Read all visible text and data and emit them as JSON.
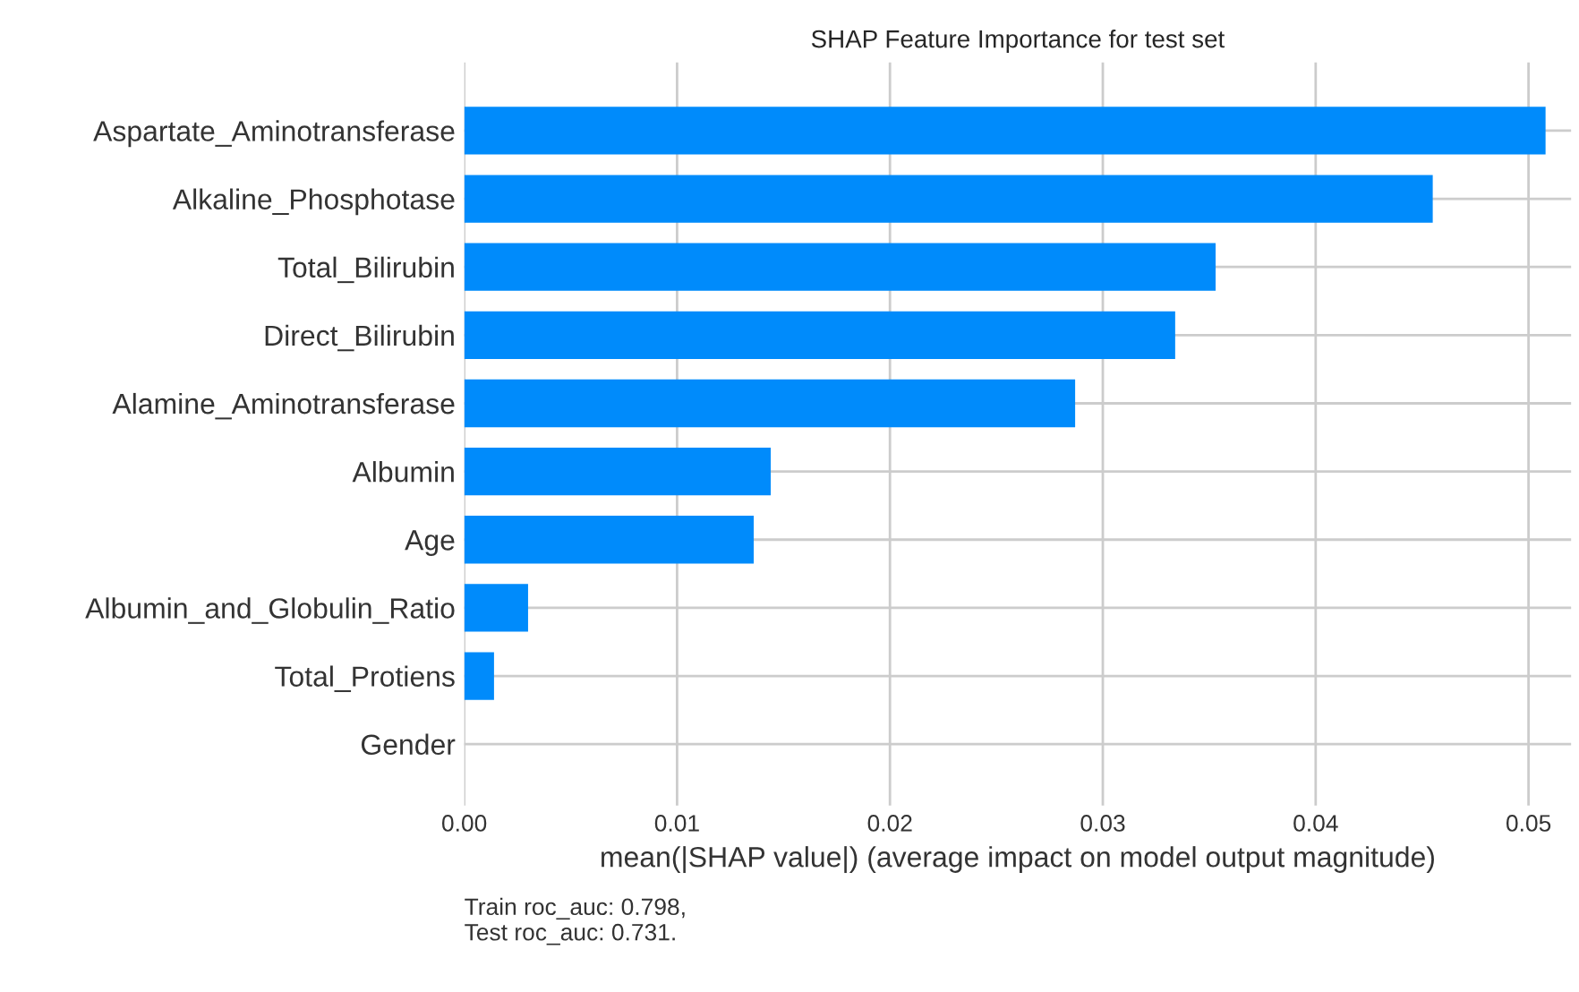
{
  "chart_data": {
    "type": "bar",
    "orientation": "horizontal",
    "title": "SHAP Feature Importance for test set",
    "xlabel": "mean(|SHAP value|) (average impact on model output magnitude)",
    "categories": [
      "Aspartate_Aminotransferase",
      "Alkaline_Phosphotase",
      "Total_Bilirubin",
      "Direct_Bilirubin",
      "Alamine_Aminotransferase",
      "Albumin",
      "Age",
      "Albumin_and_Globulin_Ratio",
      "Total_Protiens",
      "Gender"
    ],
    "values": [
      0.0508,
      0.0455,
      0.0353,
      0.0334,
      0.0287,
      0.0144,
      0.0136,
      0.003,
      0.0014,
      0.0
    ],
    "color": "#008bfb",
    "xlim": [
      0,
      0.052
    ],
    "xticks": [
      {
        "value": 0,
        "label": "0.00"
      },
      0.01,
      0.02,
      0.03,
      0.04,
      0.05
    ],
    "grid": true,
    "legend": false,
    "annotations": [
      "Train roc_auc: 0.798,\nTest roc_auc: 0.731."
    ]
  }
}
